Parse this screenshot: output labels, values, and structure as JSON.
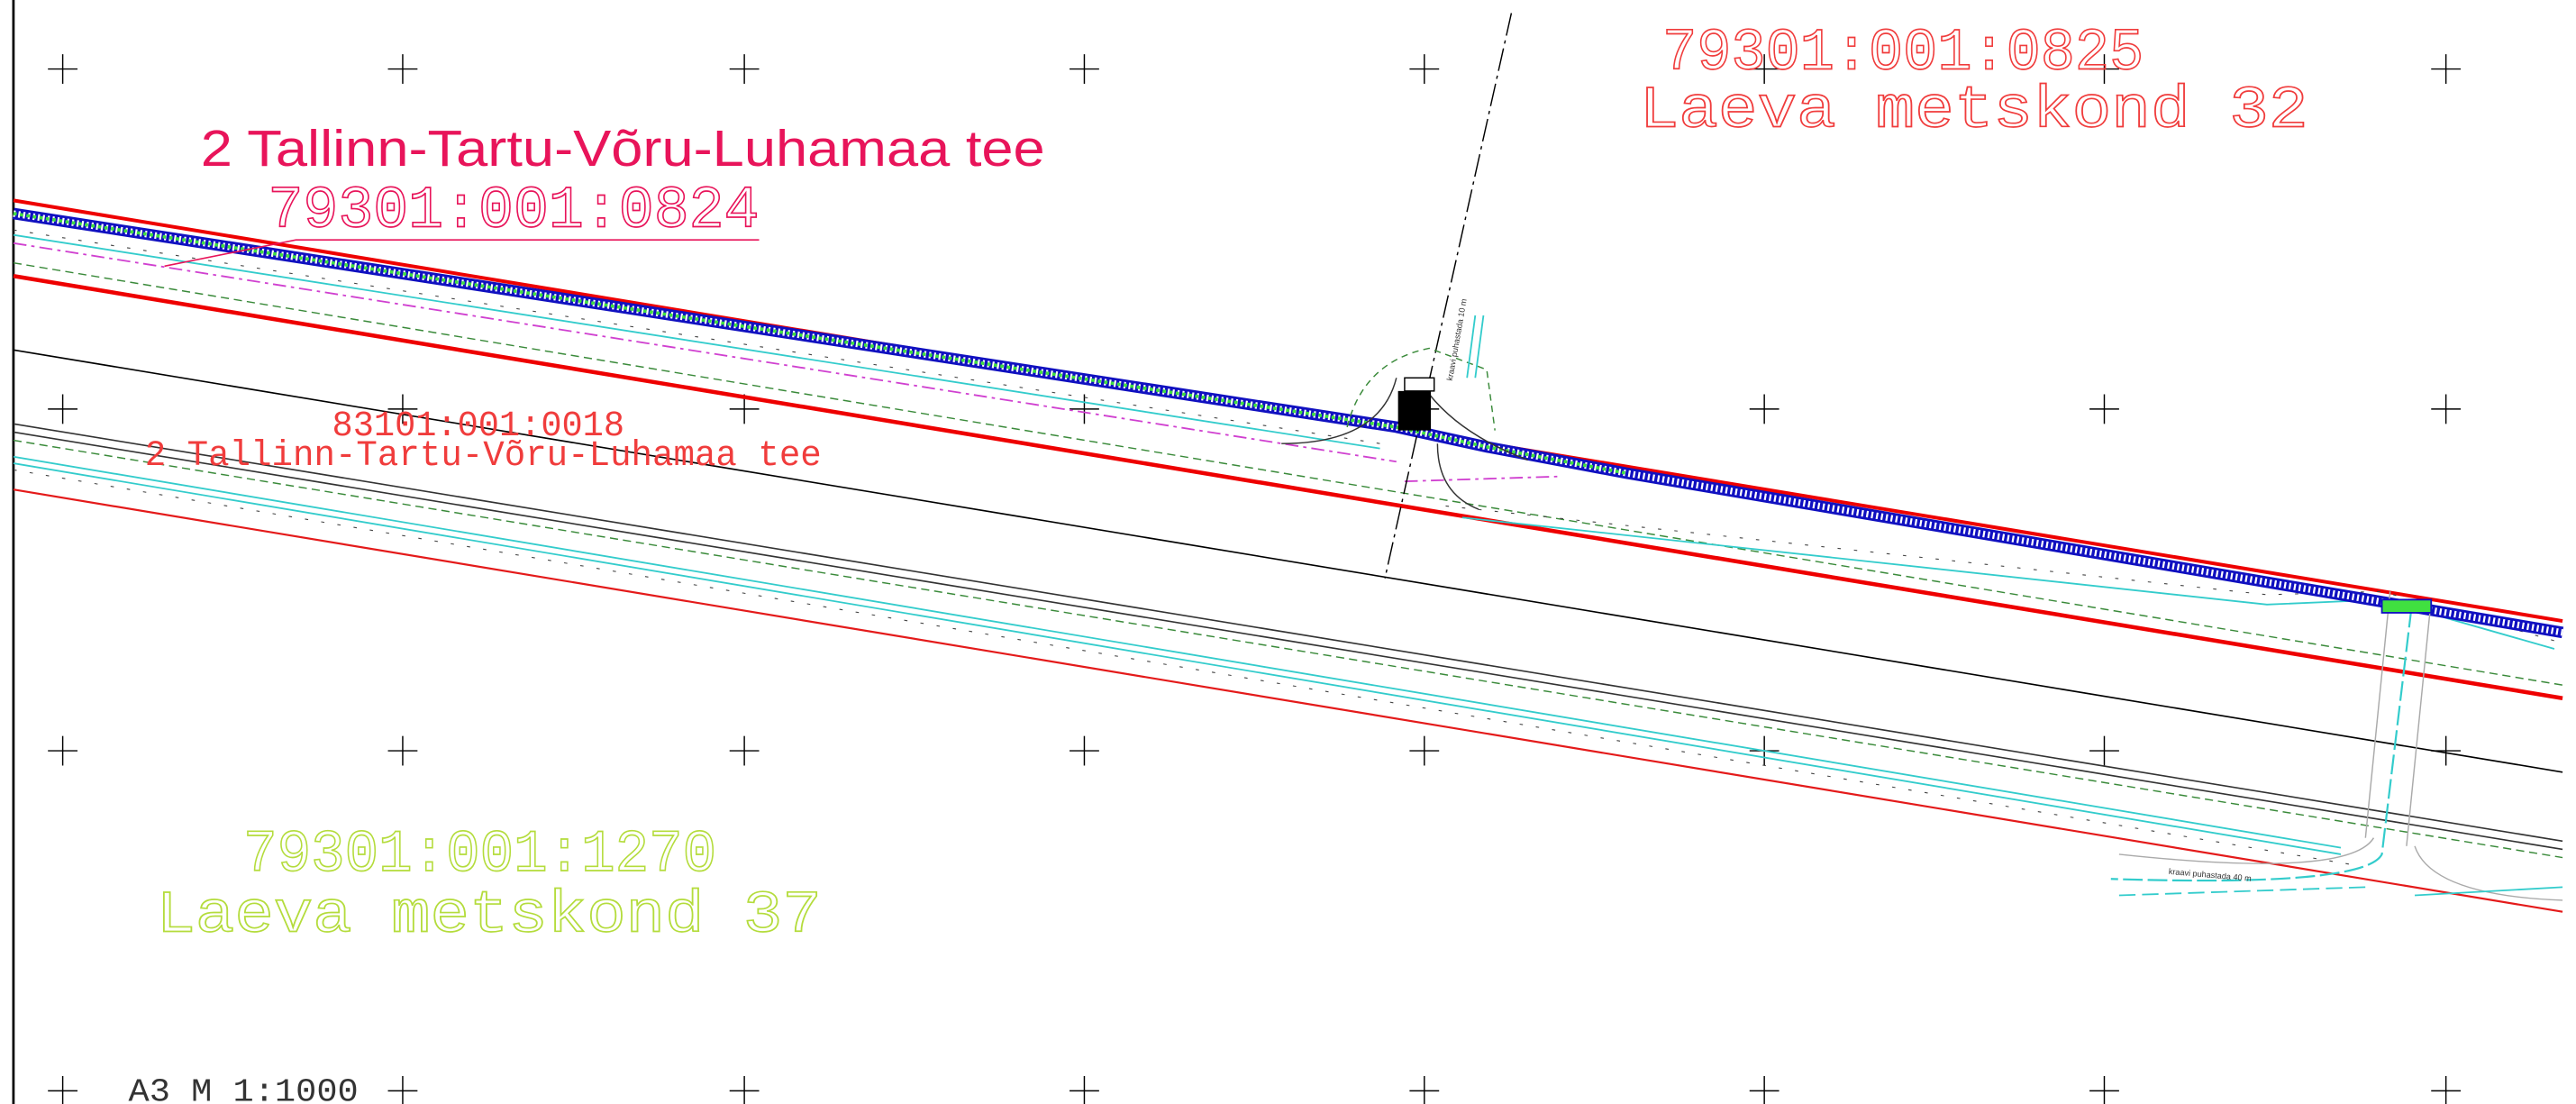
{
  "parcels": [
    {
      "id": "79301:001:0825",
      "name": "Laeva metskond 32"
    },
    {
      "id": "79301:001:0824",
      "name": "2 Tallinn-Tartu-Võru-Luhamaa tee"
    },
    {
      "id": "83101:001:0018",
      "name": "2 Tallinn-Tartu-Võru-Luhamaa tee"
    },
    {
      "id": "79301:001:1270",
      "name": "Laeva metskond 37"
    }
  ],
  "notes": [
    "kraavi puhastada 10 m",
    "kraavi puhastada 40 m"
  ],
  "scale": "A3 M 1:1000"
}
